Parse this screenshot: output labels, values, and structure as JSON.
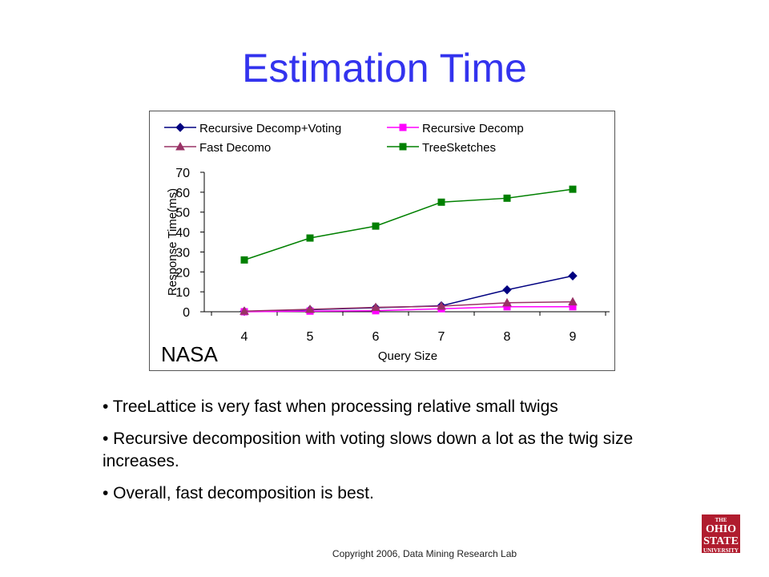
{
  "slide": {
    "title": "Estimation Time",
    "bullets": [
      "• TreeLattice is very fast when processing relative small twigs",
      "• Recursive decomposition with voting slows down a lot as the twig size increases.",
      "• Overall, fast decomposition is best."
    ],
    "footer": "Copyright 2006, Data Mining Research Lab",
    "logo": {
      "top": "THE",
      "line1": "OHIO",
      "line2": "STATE",
      "bottom": "UNIVERSITY"
    }
  },
  "chart_data": {
    "type": "line",
    "title": "",
    "inset_label": "NASA",
    "xlabel": "Query Size",
    "ylabel": "Response Time(ms)",
    "categories": [
      "4",
      "5",
      "6",
      "7",
      "8",
      "9"
    ],
    "x": [
      4,
      5,
      6,
      7,
      8,
      9
    ],
    "ylim": [
      0,
      70
    ],
    "yticks": [
      0,
      10,
      20,
      30,
      40,
      50,
      60,
      70
    ],
    "grid": false,
    "legend": "top",
    "series": [
      {
        "name": "Recursive Decomp+Voting",
        "values": [
          0.2,
          1,
          2,
          3,
          11,
          18
        ],
        "color": "#000080",
        "marker": "diamond"
      },
      {
        "name": "Recursive Decomp",
        "values": [
          0,
          0.3,
          0.5,
          1.5,
          2.5,
          2.5
        ],
        "color": "#ff00ff",
        "marker": "square"
      },
      {
        "name": "Fast Decomo",
        "values": [
          0.3,
          1.2,
          2.2,
          2.8,
          4.5,
          5
        ],
        "color": "#993366",
        "marker": "triangle"
      },
      {
        "name": "TreeSketches",
        "values": [
          26,
          37,
          43,
          55,
          57,
          61.5
        ],
        "color": "#008000",
        "marker": "square"
      }
    ]
  }
}
